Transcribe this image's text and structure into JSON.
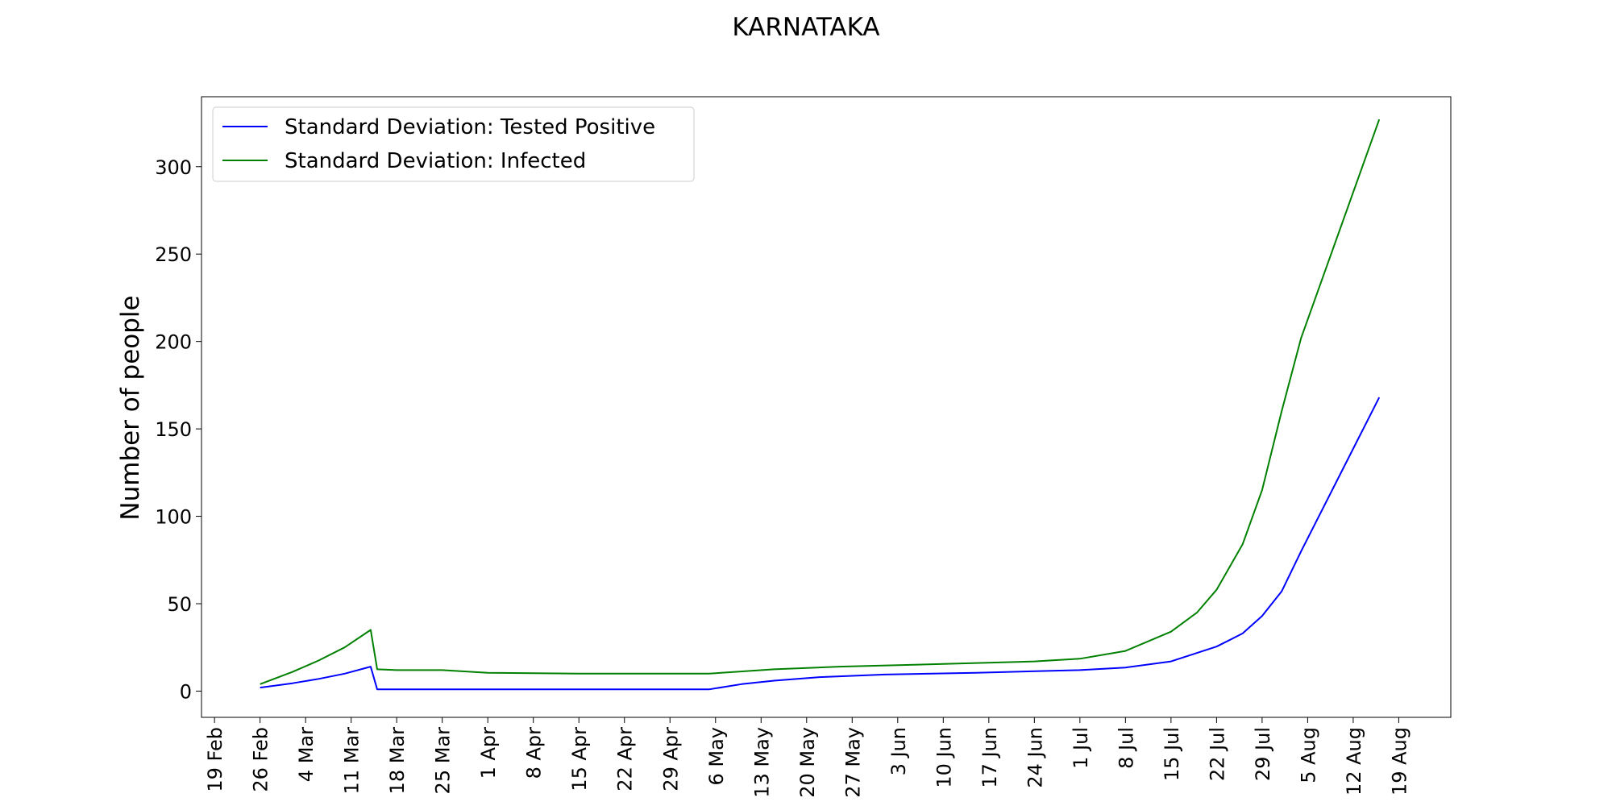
{
  "chart_data": {
    "type": "line",
    "title": "KARNATAKA",
    "xlabel": "",
    "ylabel": "Number of people",
    "x_tick_labels": [
      "19 Feb",
      "26 Feb",
      "4 Mar",
      "11 Mar",
      "18 Mar",
      "25 Mar",
      "1 Apr",
      "8 Apr",
      "15 Apr",
      "22 Apr",
      "29 Apr",
      "6 May",
      "13 May",
      "20 May",
      "27 May",
      "3 Jun",
      "10 Jun",
      "17 Jun",
      "24 Jun",
      "1 Jul",
      "8 Jul",
      "15 Jul",
      "22 Jul",
      "29 Jul",
      "5 Aug",
      "12 Aug",
      "19 Aug"
    ],
    "y_ticks": [
      0,
      50,
      100,
      150,
      200,
      250,
      300
    ],
    "xlim": [
      "2020-02-17",
      "2020-08-27"
    ],
    "ylim": [
      -15,
      340
    ],
    "grid": false,
    "legend_position": "upper left",
    "series": [
      {
        "name": "Standard Deviation: Tested Positive",
        "color": "#0000ff",
        "points": [
          [
            "2020-02-26",
            2
          ],
          [
            "2020-03-02",
            4.5
          ],
          [
            "2020-03-06",
            7
          ],
          [
            "2020-03-10",
            10
          ],
          [
            "2020-03-14",
            14
          ],
          [
            "2020-03-15",
            1
          ],
          [
            "2020-03-25",
            1
          ],
          [
            "2020-04-15",
            1
          ],
          [
            "2020-05-05",
            1
          ],
          [
            "2020-05-10",
            4
          ],
          [
            "2020-05-15",
            6
          ],
          [
            "2020-05-22",
            8
          ],
          [
            "2020-06-01",
            9.5
          ],
          [
            "2020-06-15",
            10.5
          ],
          [
            "2020-07-01",
            12
          ],
          [
            "2020-07-08",
            13.5
          ],
          [
            "2020-07-15",
            17
          ],
          [
            "2020-07-22",
            25.5
          ],
          [
            "2020-07-26",
            33
          ],
          [
            "2020-07-29",
            43
          ],
          [
            "2020-08-01",
            57
          ],
          [
            "2020-08-04",
            80
          ],
          [
            "2020-08-16",
            168
          ]
        ]
      },
      {
        "name": "Standard Deviation: Infected",
        "color": "#008000",
        "points": [
          [
            "2020-02-26",
            4
          ],
          [
            "2020-03-02",
            11
          ],
          [
            "2020-03-06",
            17.5
          ],
          [
            "2020-03-10",
            25
          ],
          [
            "2020-03-14",
            35
          ],
          [
            "2020-03-15",
            12.5
          ],
          [
            "2020-03-18",
            12
          ],
          [
            "2020-03-25",
            12
          ],
          [
            "2020-04-01",
            10.5
          ],
          [
            "2020-04-15",
            10
          ],
          [
            "2020-05-05",
            10
          ],
          [
            "2020-05-15",
            12.5
          ],
          [
            "2020-05-25",
            14
          ],
          [
            "2020-06-10",
            15.5
          ],
          [
            "2020-06-24",
            17
          ],
          [
            "2020-07-01",
            18.5
          ],
          [
            "2020-07-08",
            23
          ],
          [
            "2020-07-15",
            34
          ],
          [
            "2020-07-19",
            45
          ],
          [
            "2020-07-22",
            58
          ],
          [
            "2020-07-26",
            84
          ],
          [
            "2020-07-29",
            115
          ],
          [
            "2020-08-01",
            160
          ],
          [
            "2020-08-04",
            202
          ],
          [
            "2020-08-16",
            327
          ]
        ]
      }
    ]
  }
}
